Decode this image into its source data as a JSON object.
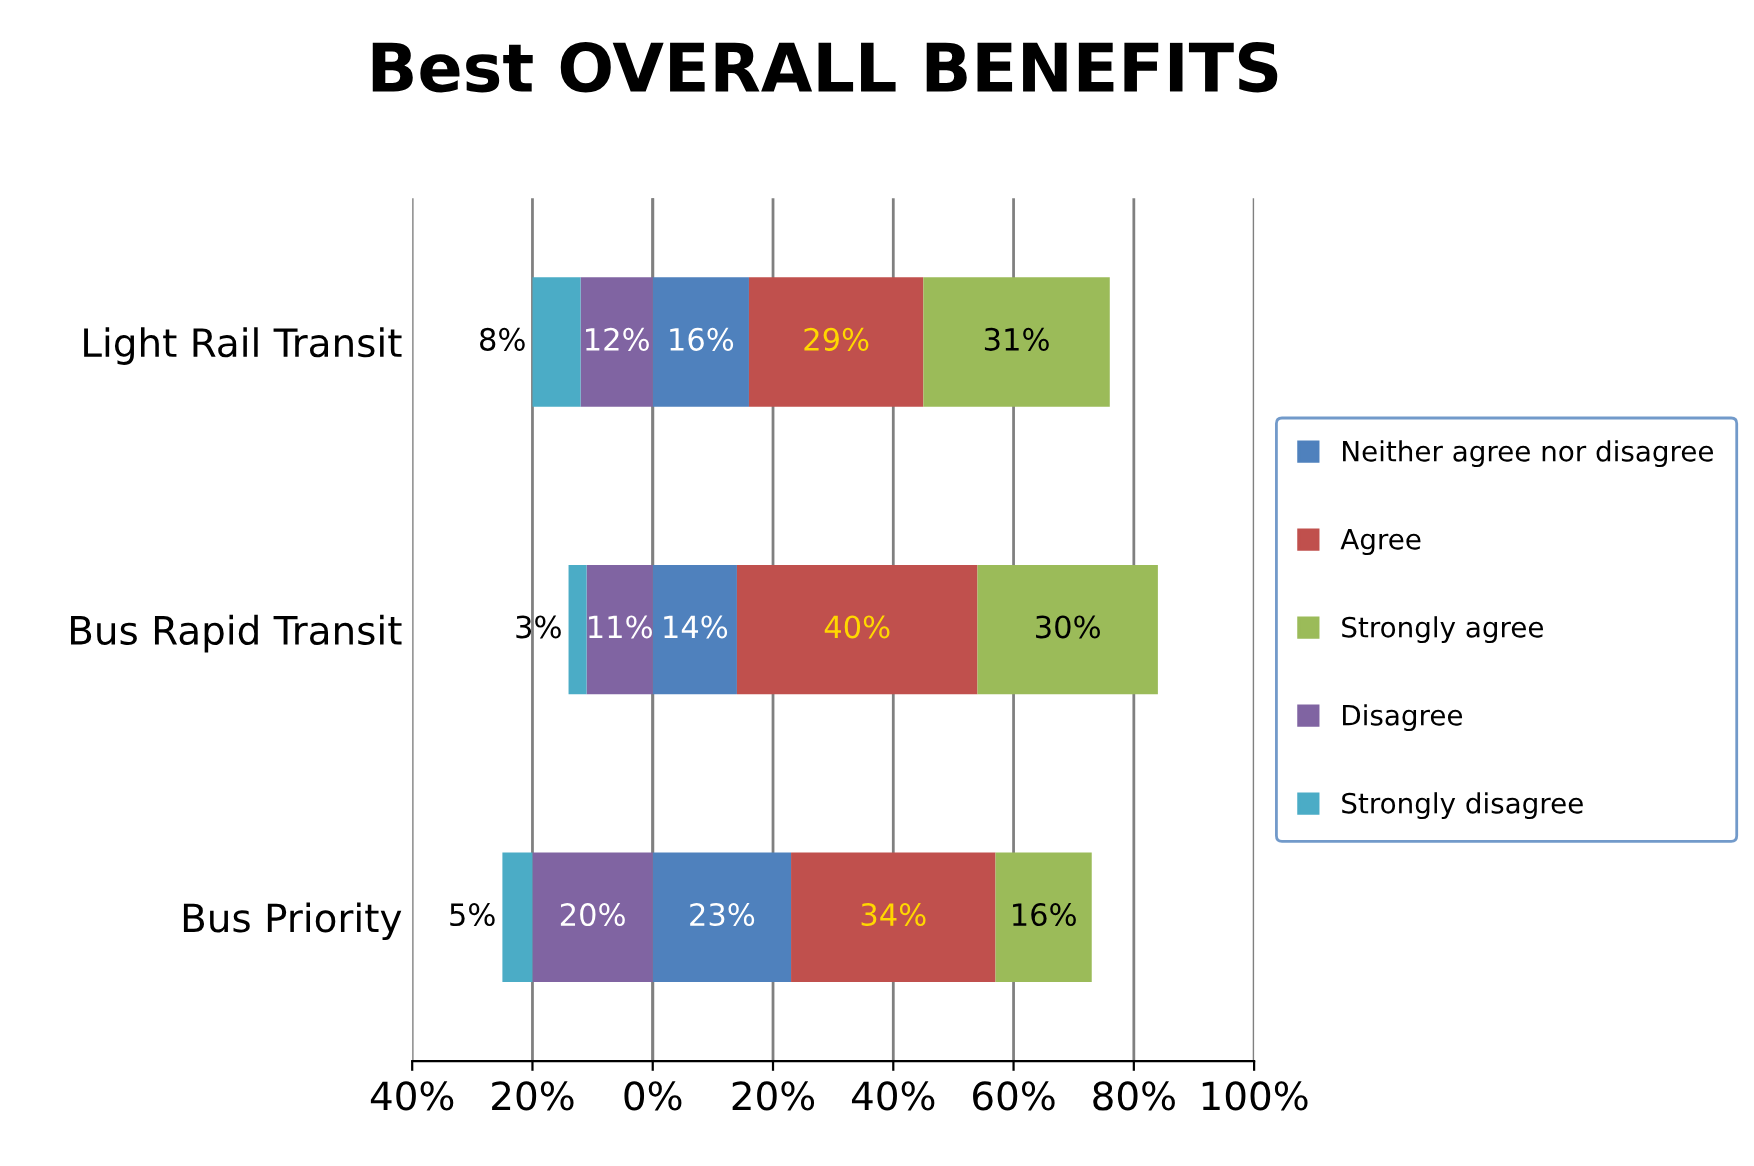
{
  "chart_data": {
    "type": "bar",
    "orientation": "horizontal",
    "title": "Best OVERALL BENEFITS",
    "categories": [
      "Light Rail Transit",
      "Bus Rapid Transit",
      "Bus Priority"
    ],
    "series": [
      {
        "name": "Neither agree nor disagree",
        "color": "#4f81bd",
        "values": [
          16,
          14,
          23
        ],
        "base": [
          0,
          0,
          0
        ],
        "value_labels": [
          "16%",
          "14%",
          "23%"
        ]
      },
      {
        "name": "Agree",
        "color": "#c0504d",
        "values": [
          29,
          40,
          34
        ],
        "base": [
          16,
          14,
          23
        ],
        "value_labels": [
          "29%",
          "40%",
          "34%"
        ]
      },
      {
        "name": "Strongly agree",
        "color": "#9bbb59",
        "values": [
          31,
          30,
          16
        ],
        "base": [
          45,
          54,
          57
        ],
        "value_labels": [
          "31%",
          "30%",
          "16%"
        ]
      },
      {
        "name": "Disagree",
        "color": "#8064a2",
        "values": [
          12,
          11,
          20
        ],
        "base": [
          -12,
          -11,
          -20
        ],
        "value_labels": [
          "12%",
          "11%",
          "20%"
        ]
      },
      {
        "name": "Strongly disagree",
        "color": "#4bacc6",
        "values": [
          8,
          3,
          5
        ],
        "base": [
          -20,
          -14,
          -25
        ],
        "value_labels": [
          "8%",
          "3%",
          "5%"
        ]
      }
    ],
    "xlim": [
      -40,
      100
    ],
    "xticks": [
      {
        "value": -40,
        "label": "40%"
      },
      {
        "value": -20,
        "label": "20%"
      },
      {
        "value": 0,
        "label": "0%"
      },
      {
        "value": 20,
        "label": "20%"
      },
      {
        "value": 40,
        "label": "40%"
      },
      {
        "value": 60,
        "label": "60%"
      },
      {
        "value": 80,
        "label": "80%"
      },
      {
        "value": 100,
        "label": "100%"
      }
    ],
    "grid": "x",
    "legend": "right"
  }
}
